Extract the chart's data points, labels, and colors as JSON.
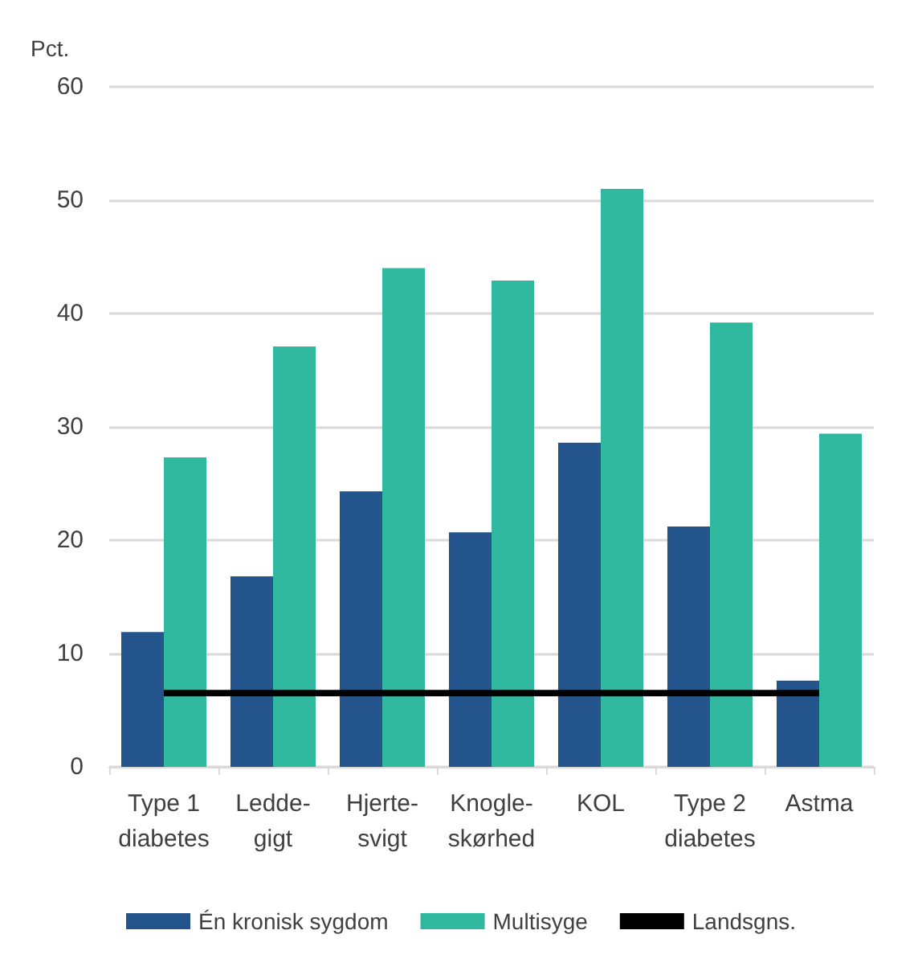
{
  "chart_data": {
    "type": "bar",
    "ylabel": "Pct.",
    "categories": [
      "Type 1\ndiabetes",
      "Ledde-\ngigt",
      "Hjerte-\nsvigt",
      "Knogle-\nskørhed",
      "KOL",
      "Type 2\ndiabetes",
      "Astma"
    ],
    "series": [
      {
        "name": "Én kronisk sygdom",
        "color": "#23548c",
        "values": [
          11.9,
          16.8,
          24.3,
          20.7,
          28.6,
          21.2,
          7.6
        ]
      },
      {
        "name": "Multisyge",
        "color": "#31b9a0",
        "values": [
          27.3,
          37.1,
          44.0,
          42.9,
          51.0,
          39.2,
          29.4
        ]
      },
      {
        "name": "Landsgns.",
        "type": "line",
        "color": "#000000",
        "marker": "none",
        "values": [
          6.5,
          6.5,
          6.5,
          6.5,
          6.5,
          6.5,
          6.5
        ]
      }
    ],
    "ylim": [
      0,
      60
    ],
    "yticks": [
      0,
      10,
      20,
      30,
      40,
      50,
      60
    ],
    "grid": "y",
    "legend": "bottom"
  }
}
